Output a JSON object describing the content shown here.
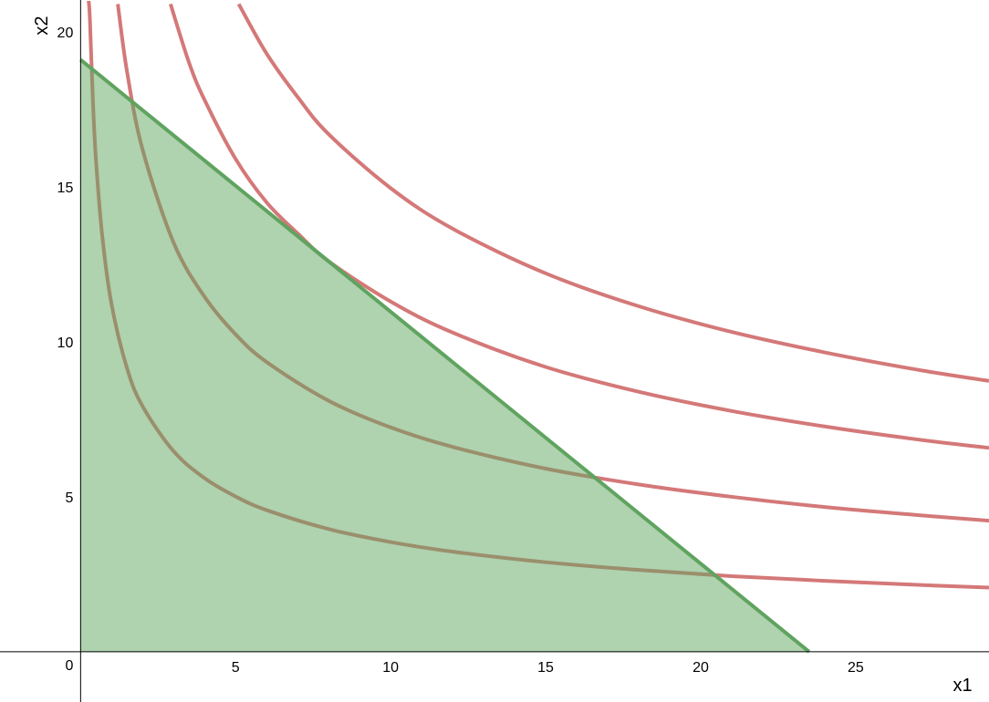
{
  "chart_data": {
    "type": "line",
    "x_label": "x1",
    "y_label": "x2",
    "xlim": [
      -2.6,
      29.3
    ],
    "ylim": [
      -1.62,
      21.03
    ],
    "xticks": [
      5,
      10,
      15,
      20,
      25
    ],
    "yticks": [
      0,
      5,
      10,
      15,
      20
    ],
    "series": [
      {
        "color": "#d47878",
        "x": [
          0.26,
          0.3,
          0.4,
          0.5,
          0.7,
          1,
          1.5,
          2,
          3,
          4,
          5,
          6,
          8,
          10,
          12,
          15,
          18,
          21,
          24,
          27,
          29.3
        ],
        "values": [
          21.0,
          20.4,
          17.7,
          15.8,
          13.4,
          11.2,
          9.14,
          7.92,
          6.47,
          5.6,
          5.01,
          4.57,
          3.96,
          3.54,
          3.23,
          2.89,
          2.64,
          2.44,
          2.29,
          2.16,
          2.07
        ]
      },
      {
        "color": "#d47878",
        "x": [
          1.2,
          1.5,
          2,
          3,
          4,
          5,
          6,
          8,
          10,
          12,
          15,
          18,
          21,
          24,
          27,
          29.3
        ],
        "values": [
          20.9,
          18.7,
          16.2,
          13.2,
          11.45,
          10.24,
          9.35,
          8.1,
          7.24,
          6.61,
          5.91,
          5.4,
          5.0,
          4.67,
          4.41,
          4.23
        ]
      },
      {
        "color": "#d47878",
        "x": [
          2.9,
          3.5,
          4,
          5,
          6,
          7,
          8,
          10,
          12,
          15,
          18,
          21,
          24,
          27,
          29.3
        ],
        "values": [
          20.9,
          19.0,
          17.8,
          15.9,
          14.5,
          13.5,
          12.6,
          11.3,
          10.3,
          9.19,
          8.39,
          7.77,
          7.27,
          6.85,
          6.58
        ]
      },
      {
        "color": "#d47878",
        "x": [
          5.1,
          6,
          7,
          8,
          10,
          12,
          15,
          18,
          21,
          24,
          27,
          29.3
        ],
        "values": [
          20.9,
          19.3,
          17.9,
          16.7,
          14.96,
          13.65,
          12.21,
          11.15,
          10.32,
          9.66,
          9.1,
          8.74
        ]
      }
    ],
    "budget": {
      "color": "#5fa35f",
      "fill": "#60a560",
      "x": [
        0,
        23.5
      ],
      "values": [
        19.1,
        0
      ]
    }
  }
}
